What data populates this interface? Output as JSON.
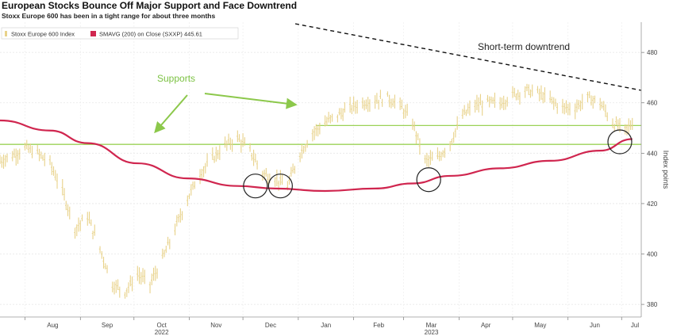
{
  "chart_data": {
    "type": "line",
    "title": "European Stocks Bounce Off Major Support and Face Downtrend",
    "subtitle": "Stoxx Europe 600 has been in a tight range for about three months",
    "ylabel": "Index points",
    "ylim": [
      375,
      492
    ],
    "y_ticks": [
      380,
      400,
      420,
      440,
      460,
      480
    ],
    "x_ticks": [
      "Aug",
      "Sep",
      "Oct",
      "Nov",
      "Dec",
      "Jan",
      "Feb",
      "Mar",
      "Apr",
      "May",
      "Jun",
      "Jul"
    ],
    "x_years": [
      {
        "label": "2022",
        "at": "Oct"
      },
      {
        "label": "2023",
        "at": "Mar"
      }
    ],
    "legend": [
      {
        "label": "Stoxx Europe 600 Index",
        "color": "#e8d28a"
      },
      {
        "label": "SMAVG (200)  on Close (SXXP)  445.61",
        "color": "#d0264f"
      }
    ],
    "series": [
      {
        "name": "Stoxx Europe 600 Index",
        "color": "#e8d28a",
        "x": [
          "2022-07-18",
          "2022-07-25",
          "2022-08-01",
          "2022-08-08",
          "2022-08-15",
          "2022-08-22",
          "2022-08-29",
          "2022-09-05",
          "2022-09-12",
          "2022-09-19",
          "2022-09-26",
          "2022-10-03",
          "2022-10-10",
          "2022-10-17",
          "2022-10-24",
          "2022-10-31",
          "2022-11-07",
          "2022-11-14",
          "2022-11-21",
          "2022-11-28",
          "2022-12-05",
          "2022-12-12",
          "2022-12-19",
          "2022-12-26",
          "2023-01-02",
          "2023-01-09",
          "2023-01-16",
          "2023-01-23",
          "2023-01-30",
          "2023-02-06",
          "2023-02-13",
          "2023-02-20",
          "2023-02-27",
          "2023-03-06",
          "2023-03-13",
          "2023-03-20",
          "2023-03-27",
          "2023-04-03",
          "2023-04-10",
          "2023-04-17",
          "2023-04-24",
          "2023-05-01",
          "2023-05-08",
          "2023-05-15",
          "2023-05-22",
          "2023-05-29",
          "2023-06-05",
          "2023-06-12",
          "2023-06-19",
          "2023-06-26",
          "2023-07-03",
          "2023-07-07"
        ],
        "values": [
          437,
          439,
          442,
          440,
          436,
          425,
          410,
          415,
          402,
          388,
          385,
          392,
          388,
          398,
          410,
          422,
          432,
          438,
          443,
          446,
          441,
          432,
          430,
          427,
          440,
          448,
          452,
          455,
          458,
          460,
          461,
          462,
          459,
          452,
          437,
          438,
          444,
          455,
          459,
          460,
          460,
          463,
          465,
          464,
          461,
          458,
          458,
          462,
          460,
          452,
          449,
          452
        ]
      },
      {
        "name": "SMAVG (200)  on Close (SXXP)  445.61",
        "color": "#d0264f",
        "x": [
          "2022-07-18",
          "2022-08-15",
          "2022-09-05",
          "2022-10-03",
          "2022-10-31",
          "2022-11-28",
          "2022-12-19",
          "2023-01-16",
          "2023-02-13",
          "2023-03-06",
          "2023-03-27",
          "2023-04-24",
          "2023-05-22",
          "2023-06-19",
          "2023-07-07"
        ],
        "values": [
          453,
          449,
          444,
          436,
          430,
          427,
          426,
          425,
          426,
          428,
          431,
          434,
          437,
          441,
          445.61
        ]
      }
    ],
    "annotations": [
      {
        "text": "Supports",
        "color": "#7cc243"
      },
      {
        "text": "Short-term downtrend",
        "color": "#222222"
      }
    ]
  }
}
